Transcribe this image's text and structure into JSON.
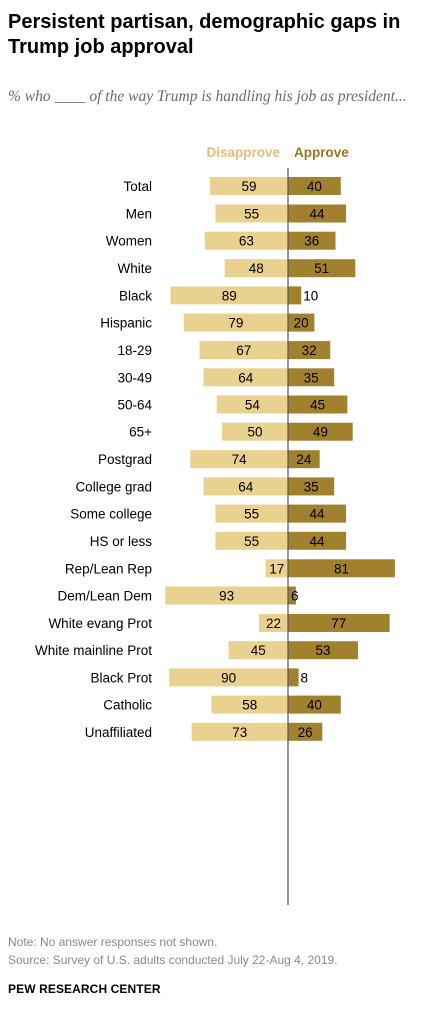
{
  "title": "Persistent partisan, demographic gaps in Trump job approval",
  "subtitle": "% who ____ of the way Trump is handling his job as president...",
  "note": "Note: No answer responses not shown.",
  "source": "Source: Survey of U.S. adults conducted July 22-Aug 4, 2019.",
  "brand": "PEW RESEARCH CENTER",
  "colors": {
    "disapprove": "#e9d18f",
    "approve": "#a1812d",
    "disapprove_label": "#dcc07a",
    "approve_label": "#967624",
    "axis": "#555555"
  },
  "chart_data": {
    "type": "bar",
    "orientation": "diverging-horizontal",
    "series": [
      {
        "name": "Disapprove",
        "values": [
          59,
          55,
          63,
          48,
          89,
          79,
          67,
          64,
          54,
          50,
          74,
          64,
          55,
          55,
          17,
          93,
          22,
          45,
          90,
          58,
          73
        ]
      },
      {
        "name": "Approve",
        "values": [
          40,
          44,
          36,
          51,
          10,
          20,
          32,
          35,
          45,
          49,
          24,
          35,
          44,
          44,
          81,
          6,
          77,
          53,
          8,
          40,
          26
        ]
      }
    ],
    "categories": [
      "Total",
      "Men",
      "Women",
      "White",
      "Black",
      "Hispanic",
      "18-29",
      "30-49",
      "50-64",
      "65+",
      "Postgrad",
      "College grad",
      "Some college",
      "HS or less",
      "Rep/Lean Rep",
      "Dem/Lean Dem",
      "White evang Prot",
      "White mainline Prot",
      "Black Prot",
      "Catholic",
      "Unaffiliated"
    ],
    "groups": [
      [
        "Total"
      ],
      [
        "Men",
        "Women"
      ],
      [
        "White",
        "Black",
        "Hispanic"
      ],
      [
        "18-29",
        "30-49",
        "50-64",
        "65+"
      ],
      [
        "Postgrad",
        "College grad",
        "Some college",
        "HS or less"
      ],
      [
        "Rep/Lean Rep",
        "Dem/Lean Dem"
      ],
      [
        "White evang Prot",
        "White mainline Prot",
        "Black Prot",
        "Catholic",
        "Unaffiliated"
      ]
    ],
    "legend": [
      "Disapprove",
      "Approve"
    ],
    "legend_position": "top",
    "grid": false
  }
}
